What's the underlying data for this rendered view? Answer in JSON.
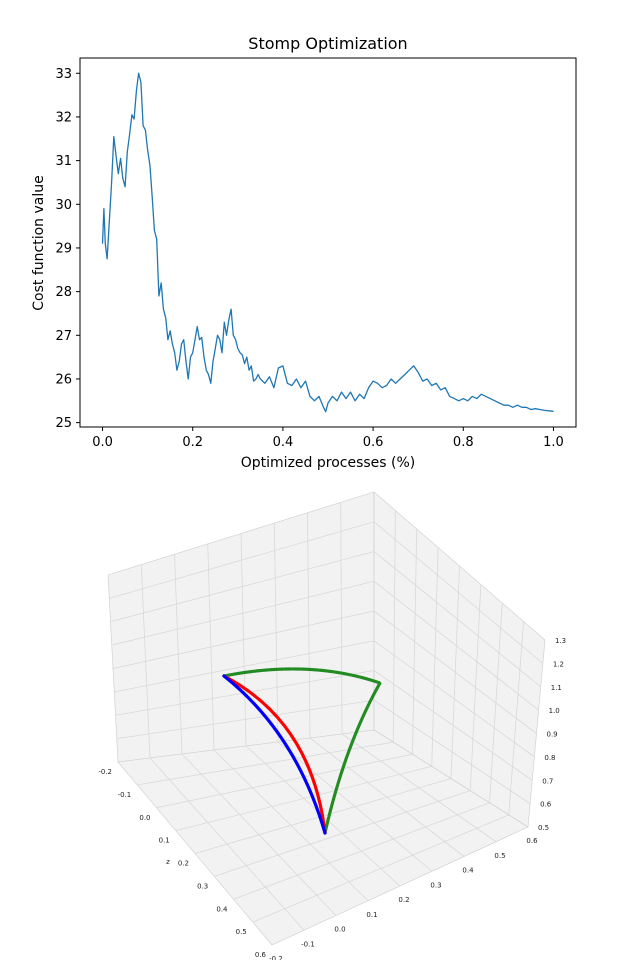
{
  "colors": {
    "line": "#1f77b4",
    "trajectory_blue": "#0000ff",
    "trajectory_red": "#ff0000",
    "trajectory_green": "#228b22",
    "pane": "#f2f2f2",
    "grid": "#d9d9d9"
  },
  "chart_data": [
    {
      "type": "line",
      "title": "Stomp Optimization",
      "xlabel": "Optimized processes (%)",
      "ylabel": "Cost function value",
      "xlim": [
        -0.05,
        1.05
      ],
      "ylim": [
        24.9,
        33.35
      ],
      "xticks": [
        "0.0",
        "0.2",
        "0.4",
        "0.6",
        "0.8",
        "1.0"
      ],
      "yticks": [
        "25",
        "26",
        "27",
        "28",
        "29",
        "30",
        "31",
        "32",
        "33"
      ],
      "grid": false,
      "series": [
        {
          "x": [
            0.0,
            0.003,
            0.006,
            0.01,
            0.015,
            0.02,
            0.025,
            0.03,
            0.035,
            0.04,
            0.045,
            0.05,
            0.055,
            0.06,
            0.065,
            0.07,
            0.075,
            0.08,
            0.085,
            0.09,
            0.095,
            0.1,
            0.105,
            0.11,
            0.115,
            0.12,
            0.125,
            0.13,
            0.135,
            0.14,
            0.145,
            0.15,
            0.155,
            0.16,
            0.165,
            0.17,
            0.175,
            0.18,
            0.185,
            0.19,
            0.195,
            0.2,
            0.205,
            0.21,
            0.215,
            0.22,
            0.225,
            0.23,
            0.235,
            0.24,
            0.245,
            0.25,
            0.255,
            0.26,
            0.265,
            0.27,
            0.275,
            0.28,
            0.285,
            0.29,
            0.295,
            0.3,
            0.305,
            0.31,
            0.315,
            0.32,
            0.325,
            0.33,
            0.335,
            0.34,
            0.345,
            0.35,
            0.36,
            0.37,
            0.38,
            0.39,
            0.4,
            0.41,
            0.42,
            0.43,
            0.44,
            0.45,
            0.46,
            0.47,
            0.48,
            0.49,
            0.495,
            0.5,
            0.51,
            0.52,
            0.53,
            0.54,
            0.55,
            0.56,
            0.57,
            0.58,
            0.59,
            0.6,
            0.61,
            0.62,
            0.63,
            0.64,
            0.65,
            0.66,
            0.67,
            0.68,
            0.69,
            0.7,
            0.71,
            0.72,
            0.73,
            0.74,
            0.75,
            0.76,
            0.77,
            0.78,
            0.79,
            0.8,
            0.81,
            0.82,
            0.83,
            0.84,
            0.85,
            0.86,
            0.87,
            0.88,
            0.89,
            0.9,
            0.91,
            0.92,
            0.93,
            0.94,
            0.95,
            0.96,
            0.97,
            0.98,
            0.99,
            1.0
          ],
          "y": [
            29.1,
            29.9,
            29.1,
            28.75,
            29.6,
            30.5,
            31.55,
            31.1,
            30.7,
            31.05,
            30.6,
            30.4,
            31.2,
            31.6,
            32.05,
            31.95,
            32.6,
            33.0,
            32.8,
            31.8,
            31.7,
            31.25,
            30.9,
            30.2,
            29.4,
            29.2,
            27.9,
            28.2,
            27.6,
            27.4,
            26.9,
            27.1,
            26.8,
            26.6,
            26.2,
            26.4,
            26.8,
            26.9,
            26.4,
            26.0,
            26.5,
            26.6,
            26.9,
            27.2,
            26.9,
            26.95,
            26.5,
            26.2,
            26.1,
            25.9,
            26.4,
            26.7,
            27.0,
            26.9,
            26.6,
            27.3,
            27.0,
            27.35,
            27.6,
            27.0,
            26.9,
            26.7,
            26.6,
            26.55,
            26.35,
            26.5,
            26.2,
            26.3,
            25.95,
            26.0,
            26.1,
            26.0,
            25.9,
            26.05,
            25.8,
            26.25,
            26.3,
            25.9,
            25.85,
            26.0,
            25.8,
            25.95,
            25.6,
            25.5,
            25.6,
            25.35,
            25.25,
            25.45,
            25.6,
            25.5,
            25.7,
            25.55,
            25.7,
            25.5,
            25.65,
            25.55,
            25.8,
            25.95,
            25.9,
            25.8,
            25.85,
            26.0,
            25.9,
            26.0,
            26.1,
            26.2,
            26.3,
            26.15,
            25.95,
            26.0,
            25.85,
            25.9,
            25.75,
            25.8,
            25.6,
            25.55,
            25.5,
            25.55,
            25.5,
            25.6,
            25.55,
            25.65,
            25.6,
            25.55,
            25.5,
            25.45,
            25.4,
            25.4,
            25.35,
            25.4,
            25.35,
            25.35,
            25.3,
            25.32,
            25.3,
            25.28,
            25.27,
            25.26
          ]
        }
      ]
    },
    {
      "type": "line3d",
      "grid": true,
      "xlabel": "",
      "ylabel": "z",
      "zlabel": "",
      "x_ticks": [
        "-0.2",
        "-0.1",
        "0.0",
        "0.1",
        "0.2",
        "0.3",
        "0.4",
        "0.5",
        "0.6"
      ],
      "y_ticks": [
        "-0.2",
        "-0.1",
        "0.0",
        "0.1",
        "0.2",
        "0.3",
        "0.4",
        "0.5",
        "0.6"
      ],
      "z_ticks": [
        "0.5",
        "0.6",
        "0.7",
        "0.8",
        "0.9",
        "1.0",
        "1.1",
        "1.2",
        "1.3"
      ],
      "series": [
        {
          "name": "",
          "color": "blue",
          "points": [
            [
              0.0,
              0.0,
              1.2
            ],
            [
              0.1,
              0.25,
              0.55
            ]
          ]
        },
        {
          "name": "",
          "color": "red",
          "points": [
            [
              0.0,
              0.0,
              1.2
            ],
            [
              0.1,
              0.25,
              0.55
            ]
          ]
        },
        {
          "name": "",
          "color": "green",
          "points": [
            [
              0.0,
              0.0,
              1.2
            ],
            [
              0.35,
              -0.05,
              1.2
            ],
            [
              0.1,
              0.25,
              0.55
            ]
          ]
        }
      ]
    }
  ]
}
